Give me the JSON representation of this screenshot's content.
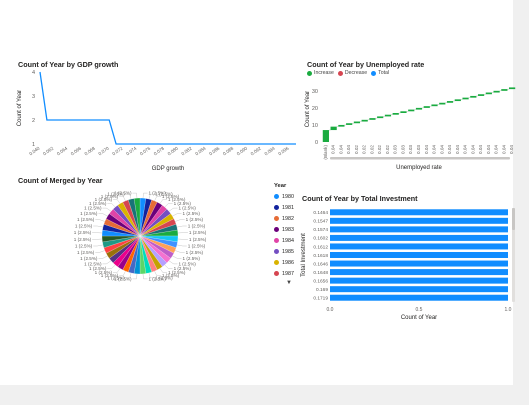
{
  "charts": {
    "gdp": {
      "title": "Count of Year by GDP growth",
      "xlabel": "GDP growth",
      "ylabel": "Count of Year"
    },
    "unemp": {
      "title": "Count of Year by Unemployed rate",
      "xlabel": "Unemployed rate",
      "ylabel": "Count of Year",
      "legend": [
        "Increase",
        "Decrease",
        "Total"
      ],
      "legend_colors": [
        "#1aab40",
        "#d64550",
        "#118dff"
      ],
      "first_label": "(Blank)"
    },
    "pie": {
      "title": "Count of Merged by Year",
      "slice_label": "1 (2.5%)"
    },
    "invest": {
      "title": "Count of Year by Total Investment",
      "xlabel": "Count of Year",
      "ylabel": "Total Investment"
    },
    "year_legend": {
      "title": "Year",
      "items": [
        "1980",
        "1981",
        "1982",
        "1983",
        "1984",
        "1985",
        "1986",
        "1987"
      ],
      "colors": [
        "#118dff",
        "#12239e",
        "#e66c37",
        "#6b007b",
        "#e044a7",
        "#744ec2",
        "#d9b300",
        "#d64550"
      ]
    }
  },
  "chart_data": [
    {
      "type": "line",
      "title": "Count of Year by GDP growth",
      "xlabel": "GDP growth",
      "ylabel": "Count of Year",
      "ylim": [
        1,
        4
      ],
      "yticks": [
        "1",
        "2",
        "3",
        "4"
      ],
      "x": [
        "0.040",
        "0.061",
        "0.062",
        "0.063",
        "0.064",
        "0.065",
        "0.066",
        "0.067",
        "0.068",
        "0.069",
        "0.070",
        "0.071",
        "0.072",
        "0.073",
        "0.074",
        "0.075",
        "0.076",
        "0.077",
        "0.078",
        "0.079",
        "0.080",
        "0.081",
        "0.082",
        "0.083",
        "0.084",
        "0.085",
        "0.086",
        "0.087",
        "0.088",
        "0.089",
        "0.090",
        "0.091",
        "0.092",
        "0.093",
        "0.094",
        "0.095",
        "0.096",
        "0.097"
      ],
      "values": [
        4,
        2,
        2,
        2,
        2,
        2,
        2,
        2,
        2,
        2,
        2,
        1,
        1,
        1,
        1,
        1,
        1,
        1,
        1,
        1,
        1,
        1,
        1,
        1,
        1,
        1,
        1,
        1,
        1,
        1,
        1,
        1,
        1,
        1,
        1,
        1,
        1,
        1
      ],
      "color": "#118dff"
    },
    {
      "type": "bar",
      "subtype": "waterfall",
      "title": "Count of Year by Unemployed rate",
      "xlabel": "Unemployed rate",
      "ylabel": "Count of Year",
      "ylim": [
        0,
        34
      ],
      "yticks": [
        "0",
        "10",
        "20",
        "30"
      ],
      "categories": [
        "(Blank)",
        "0.04",
        "0.04",
        "0.04",
        "0.02",
        "0.02",
        "0.02",
        "0.02",
        "0.02",
        "0.03",
        "0.03",
        "0.03",
        "0.03",
        "0.04",
        "0.04",
        "0.04",
        "0.04",
        "0.04",
        "0.04",
        "0.04",
        "0.04",
        "0.04",
        "0.04",
        "0.04",
        "0.04"
      ],
      "values": [
        7,
        2,
        1,
        1,
        1,
        1,
        1,
        1,
        1,
        1,
        1,
        1,
        1,
        1,
        1,
        1,
        1,
        1,
        1,
        1,
        1,
        1,
        1,
        1,
        1
      ],
      "color": "#1aab40"
    },
    {
      "type": "pie",
      "title": "Count of Merged by Year",
      "slice_count": 40,
      "slice_value": 1,
      "slice_percent": 2.5,
      "slice_label": "1 (2.5%)",
      "colors": [
        "#118dff",
        "#12239e",
        "#e66c37",
        "#6b007b",
        "#e044a7",
        "#744ec2",
        "#d9b300",
        "#d64550",
        "#197278",
        "#1aab40",
        "#15c6f4",
        "#4092ff",
        "#ffa058",
        "#be5dc9",
        "#f472d0",
        "#b5a1ff",
        "#c4a200",
        "#ff8080",
        "#00dbbc",
        "#5bd667",
        "#0091d5",
        "#4668c5",
        "#ff6300",
        "#99008a",
        "#ec008c",
        "#533285",
        "#99700a",
        "#ff4141",
        "#1f9a85",
        "#255a26"
      ]
    },
    {
      "type": "bar",
      "orientation": "horizontal",
      "title": "Count of Year by Total Investment",
      "xlabel": "Count of Year",
      "ylabel": "Total Investment",
      "xlim": [
        0,
        1
      ],
      "xticks": [
        "0.0",
        "0.5",
        "1.0"
      ],
      "categories": [
        "0.1464",
        "0.1547",
        "0.1574",
        "0.1602",
        "0.1612",
        "0.1618",
        "0.1646",
        "0.1648",
        "0.1656",
        "0.169",
        "0.1719"
      ],
      "values": [
        1,
        1,
        1,
        1,
        1,
        1,
        1,
        1,
        1,
        1,
        1
      ],
      "color": "#118dff"
    }
  ]
}
